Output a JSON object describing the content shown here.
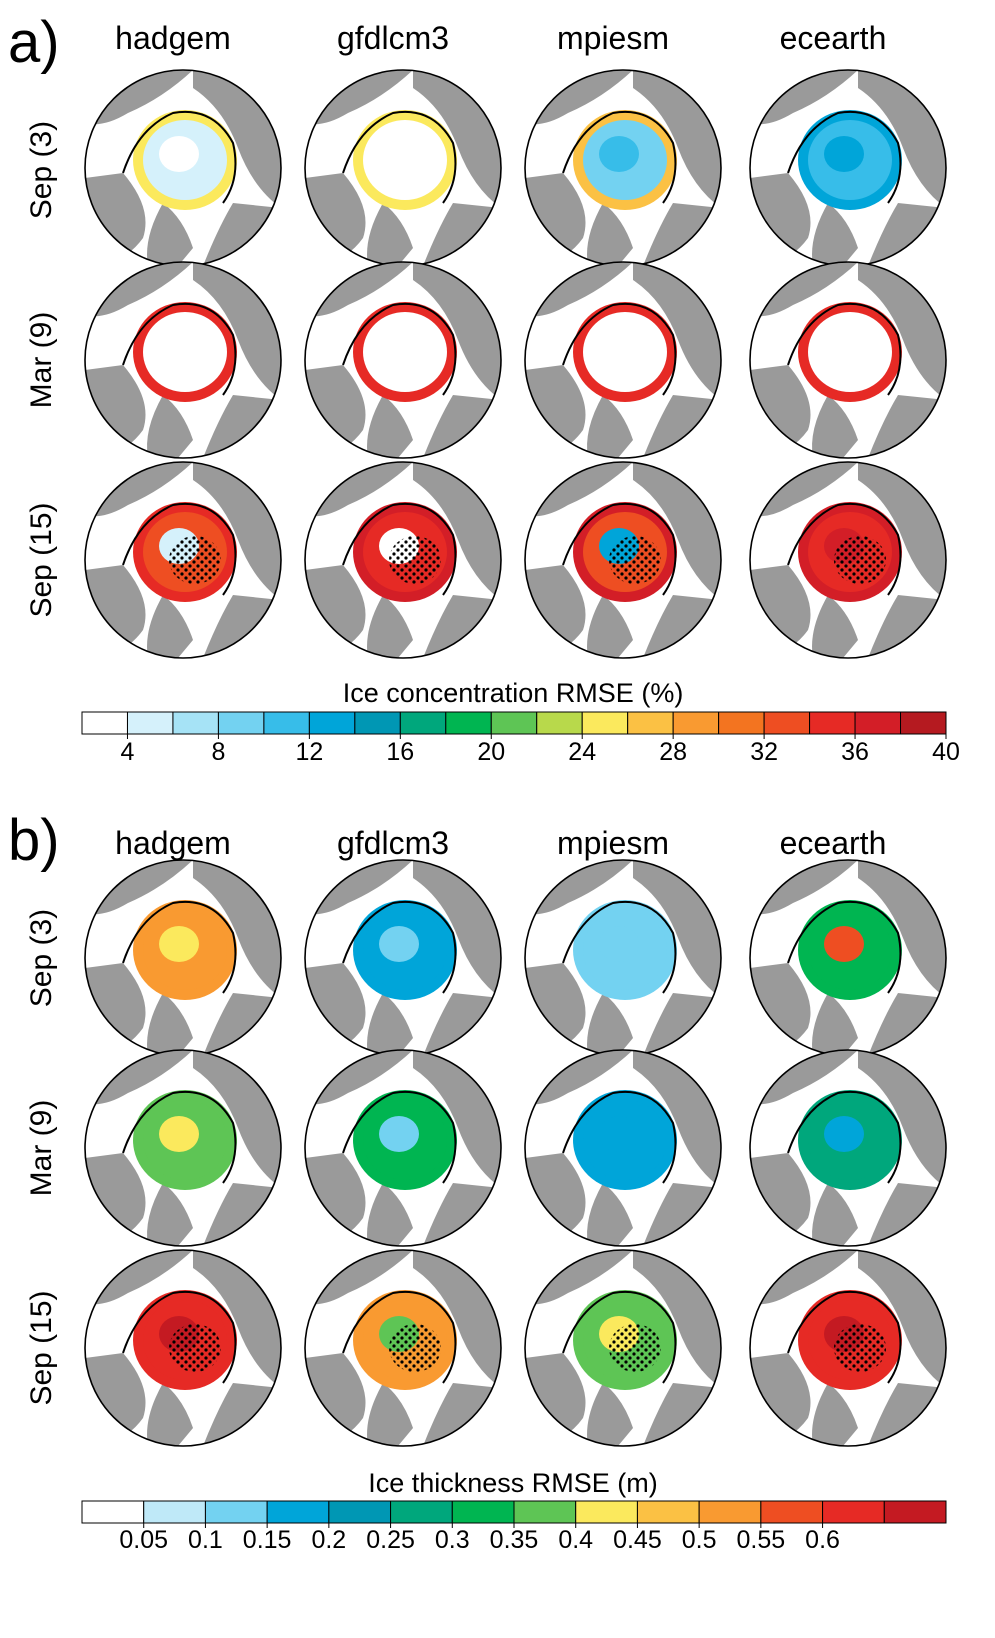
{
  "panel_a": {
    "letter": "a)",
    "models": [
      "hadgem",
      "gfdlcm3",
      "mpiesm",
      "ecearth"
    ],
    "rows": [
      "Sep (3)",
      "Mar (9)",
      "Sep (15)"
    ],
    "colorbar": {
      "title": "Ice concentration RMSE (%)",
      "ticks": [
        "4",
        "8",
        "12",
        "16",
        "20",
        "24",
        "28",
        "32",
        "36",
        "40"
      ],
      "colors": [
        "#ffffff",
        "#d5f1fb",
        "#a6e3f6",
        "#73d2f1",
        "#37bde9",
        "#00a5d9",
        "#0097b4",
        "#00a77c",
        "#00b551",
        "#5ec555",
        "#b8d94b",
        "#fbe95d",
        "#fbc144",
        "#f99a31",
        "#f37420",
        "#ee4e22",
        "#e62a25",
        "#d31e27",
        "#b51a20"
      ]
    },
    "chart_data": [
      {
        "type": "heatmap",
        "field": "Ice concentration RMSE",
        "unit": "%",
        "rows": [
          "Sep (3)",
          "Mar (9)",
          "Sep (15)"
        ],
        "columns": [
          "hadgem",
          "gfdlcm3",
          "mpiesm",
          "ecearth"
        ],
        "qualitative_max_level": [
          [
            22,
            20,
            26,
            14
          ],
          [
            32,
            30,
            30,
            30
          ],
          [
            36,
            34,
            38,
            38
          ]
        ],
        "stippling": "present"
      }
    ]
  },
  "panel_b": {
    "letter": "b)",
    "models": [
      "hadgem",
      "gfdlcm3",
      "mpiesm",
      "ecearth"
    ],
    "rows": [
      "Sep (3)",
      "Mar (9)",
      "Sep (15)"
    ],
    "colorbar": {
      "title": "Ice thickness RMSE (m)",
      "ticks": [
        "0.05",
        "0.1",
        "0.15",
        "0.2",
        "0.25",
        "0.3",
        "0.35",
        "0.4",
        "0.45",
        "0.5",
        "0.55",
        "0.6"
      ],
      "colors": [
        "#ffffff",
        "#bfe9f8",
        "#73d2f1",
        "#00a5d9",
        "#0097b4",
        "#00a77c",
        "#00b551",
        "#5ec555",
        "#fbe95d",
        "#fbc144",
        "#f99a31",
        "#ee4e22",
        "#e62a25",
        "#c41a22"
      ]
    },
    "chart_data": [
      {
        "type": "heatmap",
        "field": "Ice thickness RMSE",
        "unit": "m",
        "rows": [
          "Sep (3)",
          "Mar (9)",
          "Sep (15)"
        ],
        "columns": [
          "hadgem",
          "gfdlcm3",
          "mpiesm",
          "ecearth"
        ],
        "qualitative_max_level": [
          [
            0.55,
            0.25,
            0.15,
            0.5
          ],
          [
            0.55,
            0.35,
            0.25,
            0.3
          ],
          [
            0.6,
            0.55,
            0.4,
            0.6
          ]
        ],
        "stippling": "present"
      }
    ]
  },
  "map_fields": {
    "a": [
      [
        "#d5f1fb",
        "#ffffff",
        "#73d2f1",
        "#37bde9"
      ],
      [
        "#ffffff",
        "#ffffff",
        "#ffffff",
        "#ffffff"
      ],
      [
        "#ee4e22",
        "#e62a25",
        "#ee4e22",
        "#e62a25"
      ]
    ],
    "a_ring": [
      [
        "#fbe95d",
        "#fbe95d",
        "#fbc144",
        "#00a5d9"
      ],
      [
        "#e62a25",
        "#e62a25",
        "#e62a25",
        "#e62a25"
      ],
      [
        "#e62a25",
        "#d31e27",
        "#d31e27",
        "#d31e27"
      ]
    ],
    "a_core": [
      [
        "#ffffff",
        "#ffffff",
        "#37bde9",
        "#00a5d9"
      ],
      [
        "#ffffff",
        "#ffffff",
        "#ffffff",
        "#ffffff"
      ],
      [
        "#d5f1fb",
        "#ffffff",
        "#00a5d9",
        "#d31e27"
      ]
    ],
    "b": [
      [
        "#f99a31",
        "#00a5d9",
        "#73d2f1",
        "#00b551"
      ],
      [
        "#5ec555",
        "#00b551",
        "#00a5d9",
        "#00a77c"
      ],
      [
        "#e62a25",
        "#f99a31",
        "#5ec555",
        "#e62a25"
      ]
    ],
    "b_core": [
      [
        "#fbe95d",
        "#73d2f1",
        "#73d2f1",
        "#ee4e22"
      ],
      [
        "#fbe95d",
        "#73d2f1",
        "#00a5d9",
        "#00a5d9"
      ],
      [
        "#c41a22",
        "#5ec555",
        "#fbe95d",
        "#c41a22"
      ]
    ]
  }
}
